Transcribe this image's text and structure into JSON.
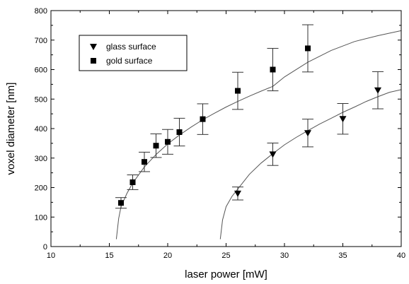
{
  "chart_data": {
    "type": "scatter",
    "xlabel": "laser power [mW]",
    "ylabel": "voxel diameter [nm]",
    "xlim": [
      10,
      40
    ],
    "ylim": [
      0,
      800
    ],
    "x_ticks": [
      "10",
      "15",
      "20",
      "25",
      "30",
      "35",
      "40"
    ],
    "y_ticks": [
      "0",
      "100",
      "200",
      "300",
      "400",
      "500",
      "600",
      "700",
      "800"
    ],
    "grid": false,
    "legend_position": "top-left",
    "series": [
      {
        "name": "glass surface",
        "marker": "triangle-down",
        "points": [
          {
            "x": 26,
            "y": 180,
            "err": 22
          },
          {
            "x": 29,
            "y": 313,
            "err": 38
          },
          {
            "x": 32,
            "y": 385,
            "err": 47
          },
          {
            "x": 35,
            "y": 433,
            "err": 52
          },
          {
            "x": 38,
            "y": 530,
            "err": 63
          }
        ],
        "fit_curve": [
          {
            "x": 24.5,
            "y": 25
          },
          {
            "x": 24.7,
            "y": 90
          },
          {
            "x": 25,
            "y": 135
          },
          {
            "x": 25.5,
            "y": 170
          },
          {
            "x": 26,
            "y": 195
          },
          {
            "x": 27,
            "y": 245
          },
          {
            "x": 28,
            "y": 283
          },
          {
            "x": 29,
            "y": 315
          },
          {
            "x": 30,
            "y": 345
          },
          {
            "x": 31,
            "y": 370
          },
          {
            "x": 32,
            "y": 393
          },
          {
            "x": 33,
            "y": 415
          },
          {
            "x": 34,
            "y": 435
          },
          {
            "x": 35,
            "y": 455
          },
          {
            "x": 36,
            "y": 473
          },
          {
            "x": 37,
            "y": 492
          },
          {
            "x": 38,
            "y": 508
          },
          {
            "x": 39,
            "y": 523
          },
          {
            "x": 40,
            "y": 532
          }
        ]
      },
      {
        "name": "gold surface",
        "marker": "square",
        "points": [
          {
            "x": 16,
            "y": 148,
            "err": 18
          },
          {
            "x": 17,
            "y": 218,
            "err": 25
          },
          {
            "x": 18,
            "y": 287,
            "err": 33
          },
          {
            "x": 19,
            "y": 342,
            "err": 40
          },
          {
            "x": 20,
            "y": 355,
            "err": 42
          },
          {
            "x": 21,
            "y": 388,
            "err": 47
          },
          {
            "x": 23,
            "y": 432,
            "err": 52
          },
          {
            "x": 26,
            "y": 528,
            "err": 63
          },
          {
            "x": 29,
            "y": 600,
            "err": 72
          },
          {
            "x": 32,
            "y": 672,
            "err": 80
          }
        ],
        "fit_curve": [
          {
            "x": 15.6,
            "y": 25
          },
          {
            "x": 15.8,
            "y": 95
          },
          {
            "x": 16,
            "y": 135
          },
          {
            "x": 16.5,
            "y": 180
          },
          {
            "x": 17,
            "y": 215
          },
          {
            "x": 18,
            "y": 270
          },
          {
            "x": 19,
            "y": 312
          },
          {
            "x": 20,
            "y": 348
          },
          {
            "x": 21,
            "y": 378
          },
          {
            "x": 22,
            "y": 405
          },
          {
            "x": 23,
            "y": 430
          },
          {
            "x": 24,
            "y": 452
          },
          {
            "x": 25,
            "y": 473
          },
          {
            "x": 26,
            "y": 492
          },
          {
            "x": 27,
            "y": 510
          },
          {
            "x": 28,
            "y": 527
          },
          {
            "x": 29,
            "y": 543
          },
          {
            "x": 30,
            "y": 575
          },
          {
            "x": 32,
            "y": 625
          },
          {
            "x": 34,
            "y": 665
          },
          {
            "x": 36,
            "y": 695
          },
          {
            "x": 38,
            "y": 715
          },
          {
            "x": 40,
            "y": 732
          }
        ]
      }
    ]
  }
}
